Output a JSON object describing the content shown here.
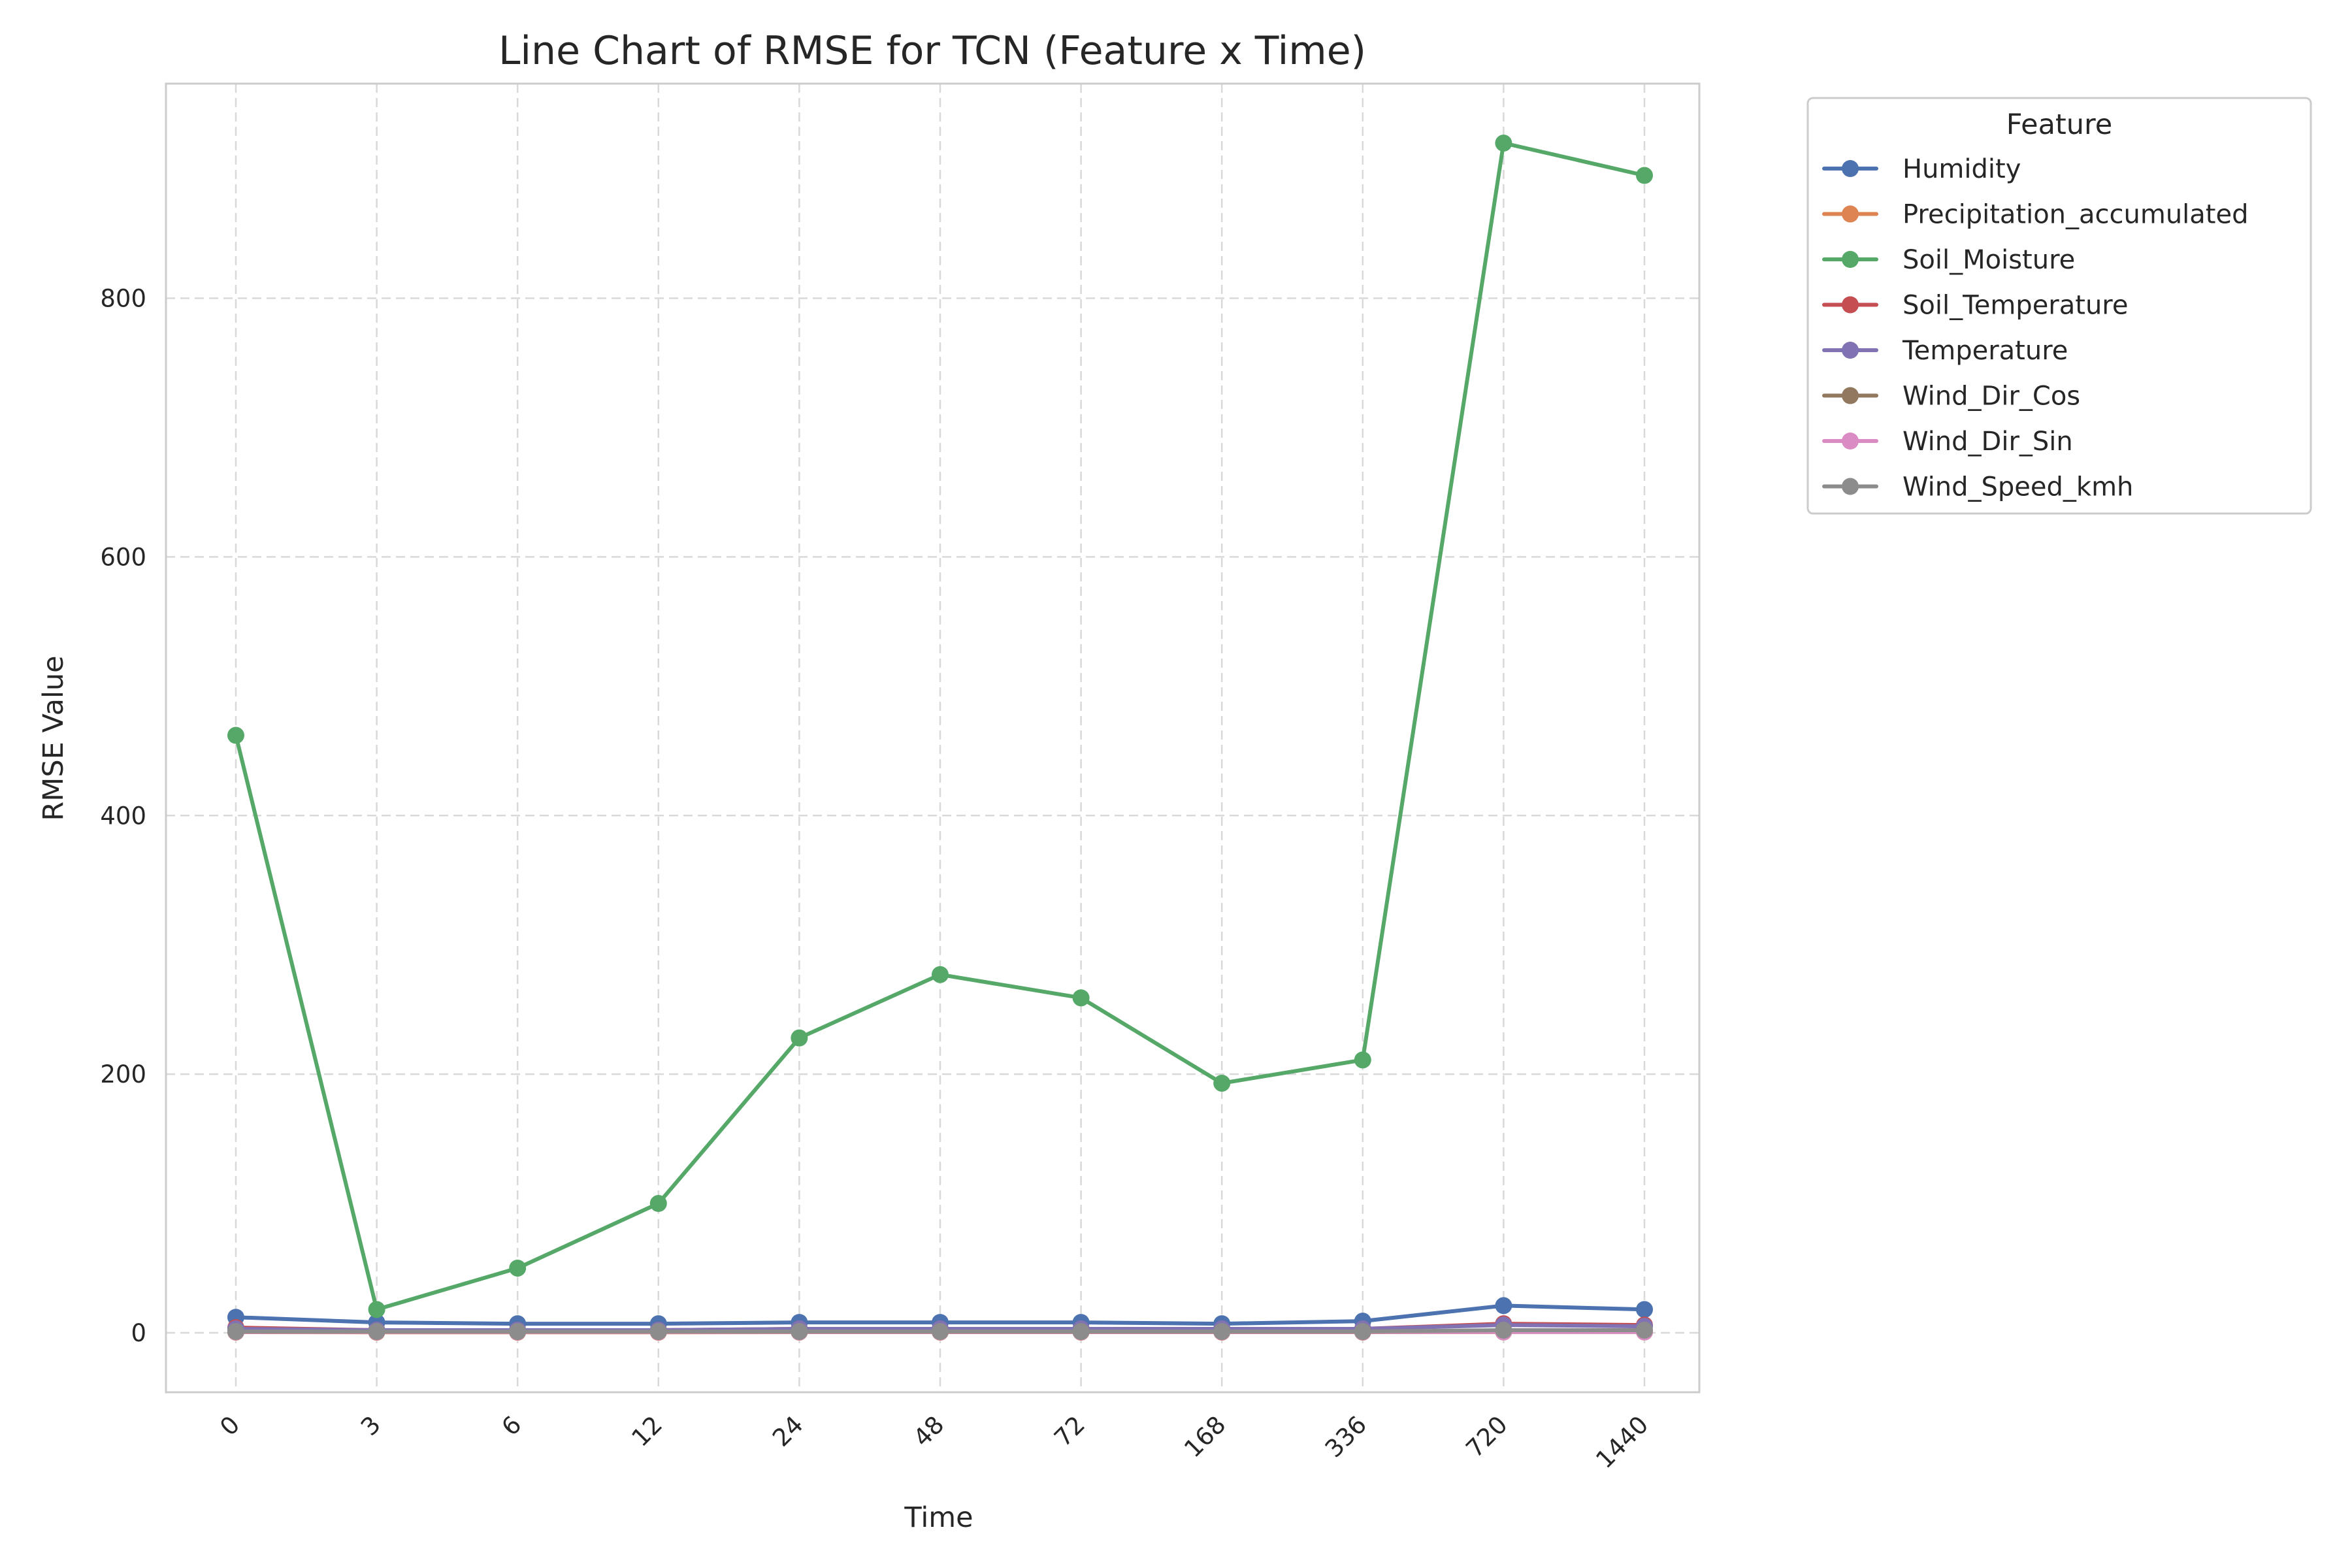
{
  "chart_data": {
    "type": "line",
    "title": "Line Chart of RMSE for TCN (Feature x Time)",
    "xlabel": "Time",
    "ylabel": "RMSE Value",
    "categories": [
      "0",
      "3",
      "6",
      "12",
      "24",
      "48",
      "72",
      "168",
      "336",
      "720",
      "1440"
    ],
    "yticks": [
      0,
      200,
      400,
      600,
      800
    ],
    "ylim": [
      -46,
      966
    ],
    "grid": true,
    "legend": {
      "title": "Feature",
      "placement": "outside-right-top"
    },
    "series": [
      {
        "name": "Humidity",
        "color": "#4c72b0",
        "values": [
          12,
          8,
          7,
          7,
          8,
          8,
          8,
          7,
          9,
          21,
          18
        ]
      },
      {
        "name": "Precipitation_accumulated",
        "color": "#dd8452",
        "values": [
          0.5,
          0.4,
          0.4,
          0.4,
          0.5,
          0.5,
          0.5,
          0.5,
          0.5,
          0.6,
          0.6
        ]
      },
      {
        "name": "Soil_Moisture",
        "color": "#55a868",
        "values": [
          462,
          18,
          50,
          100,
          228,
          277,
          259,
          193,
          211,
          920,
          895
        ]
      },
      {
        "name": "Soil_Temperature",
        "color": "#c44e52",
        "values": [
          4,
          2,
          2,
          2,
          3,
          3,
          3,
          3,
          3,
          7,
          6
        ]
      },
      {
        "name": "Temperature",
        "color": "#8172b3",
        "values": [
          3,
          2,
          2,
          2,
          3,
          3,
          3,
          3,
          3,
          6,
          5
        ]
      },
      {
        "name": "Wind_Dir_Cos",
        "color": "#937860",
        "values": [
          0.7,
          0.7,
          0.7,
          0.7,
          0.7,
          0.7,
          0.7,
          0.7,
          0.7,
          0.7,
          0.7
        ]
      },
      {
        "name": "Wind_Dir_Sin",
        "color": "#da8bc3",
        "values": [
          0.7,
          0.7,
          0.7,
          0.7,
          0.7,
          0.7,
          0.7,
          0.7,
          0.7,
          0.7,
          0.7
        ]
      },
      {
        "name": "Wind_Speed_kmh",
        "color": "#8c8c8c",
        "values": [
          1,
          1,
          1,
          1,
          1,
          1,
          1,
          1,
          1,
          2,
          2
        ]
      }
    ]
  }
}
